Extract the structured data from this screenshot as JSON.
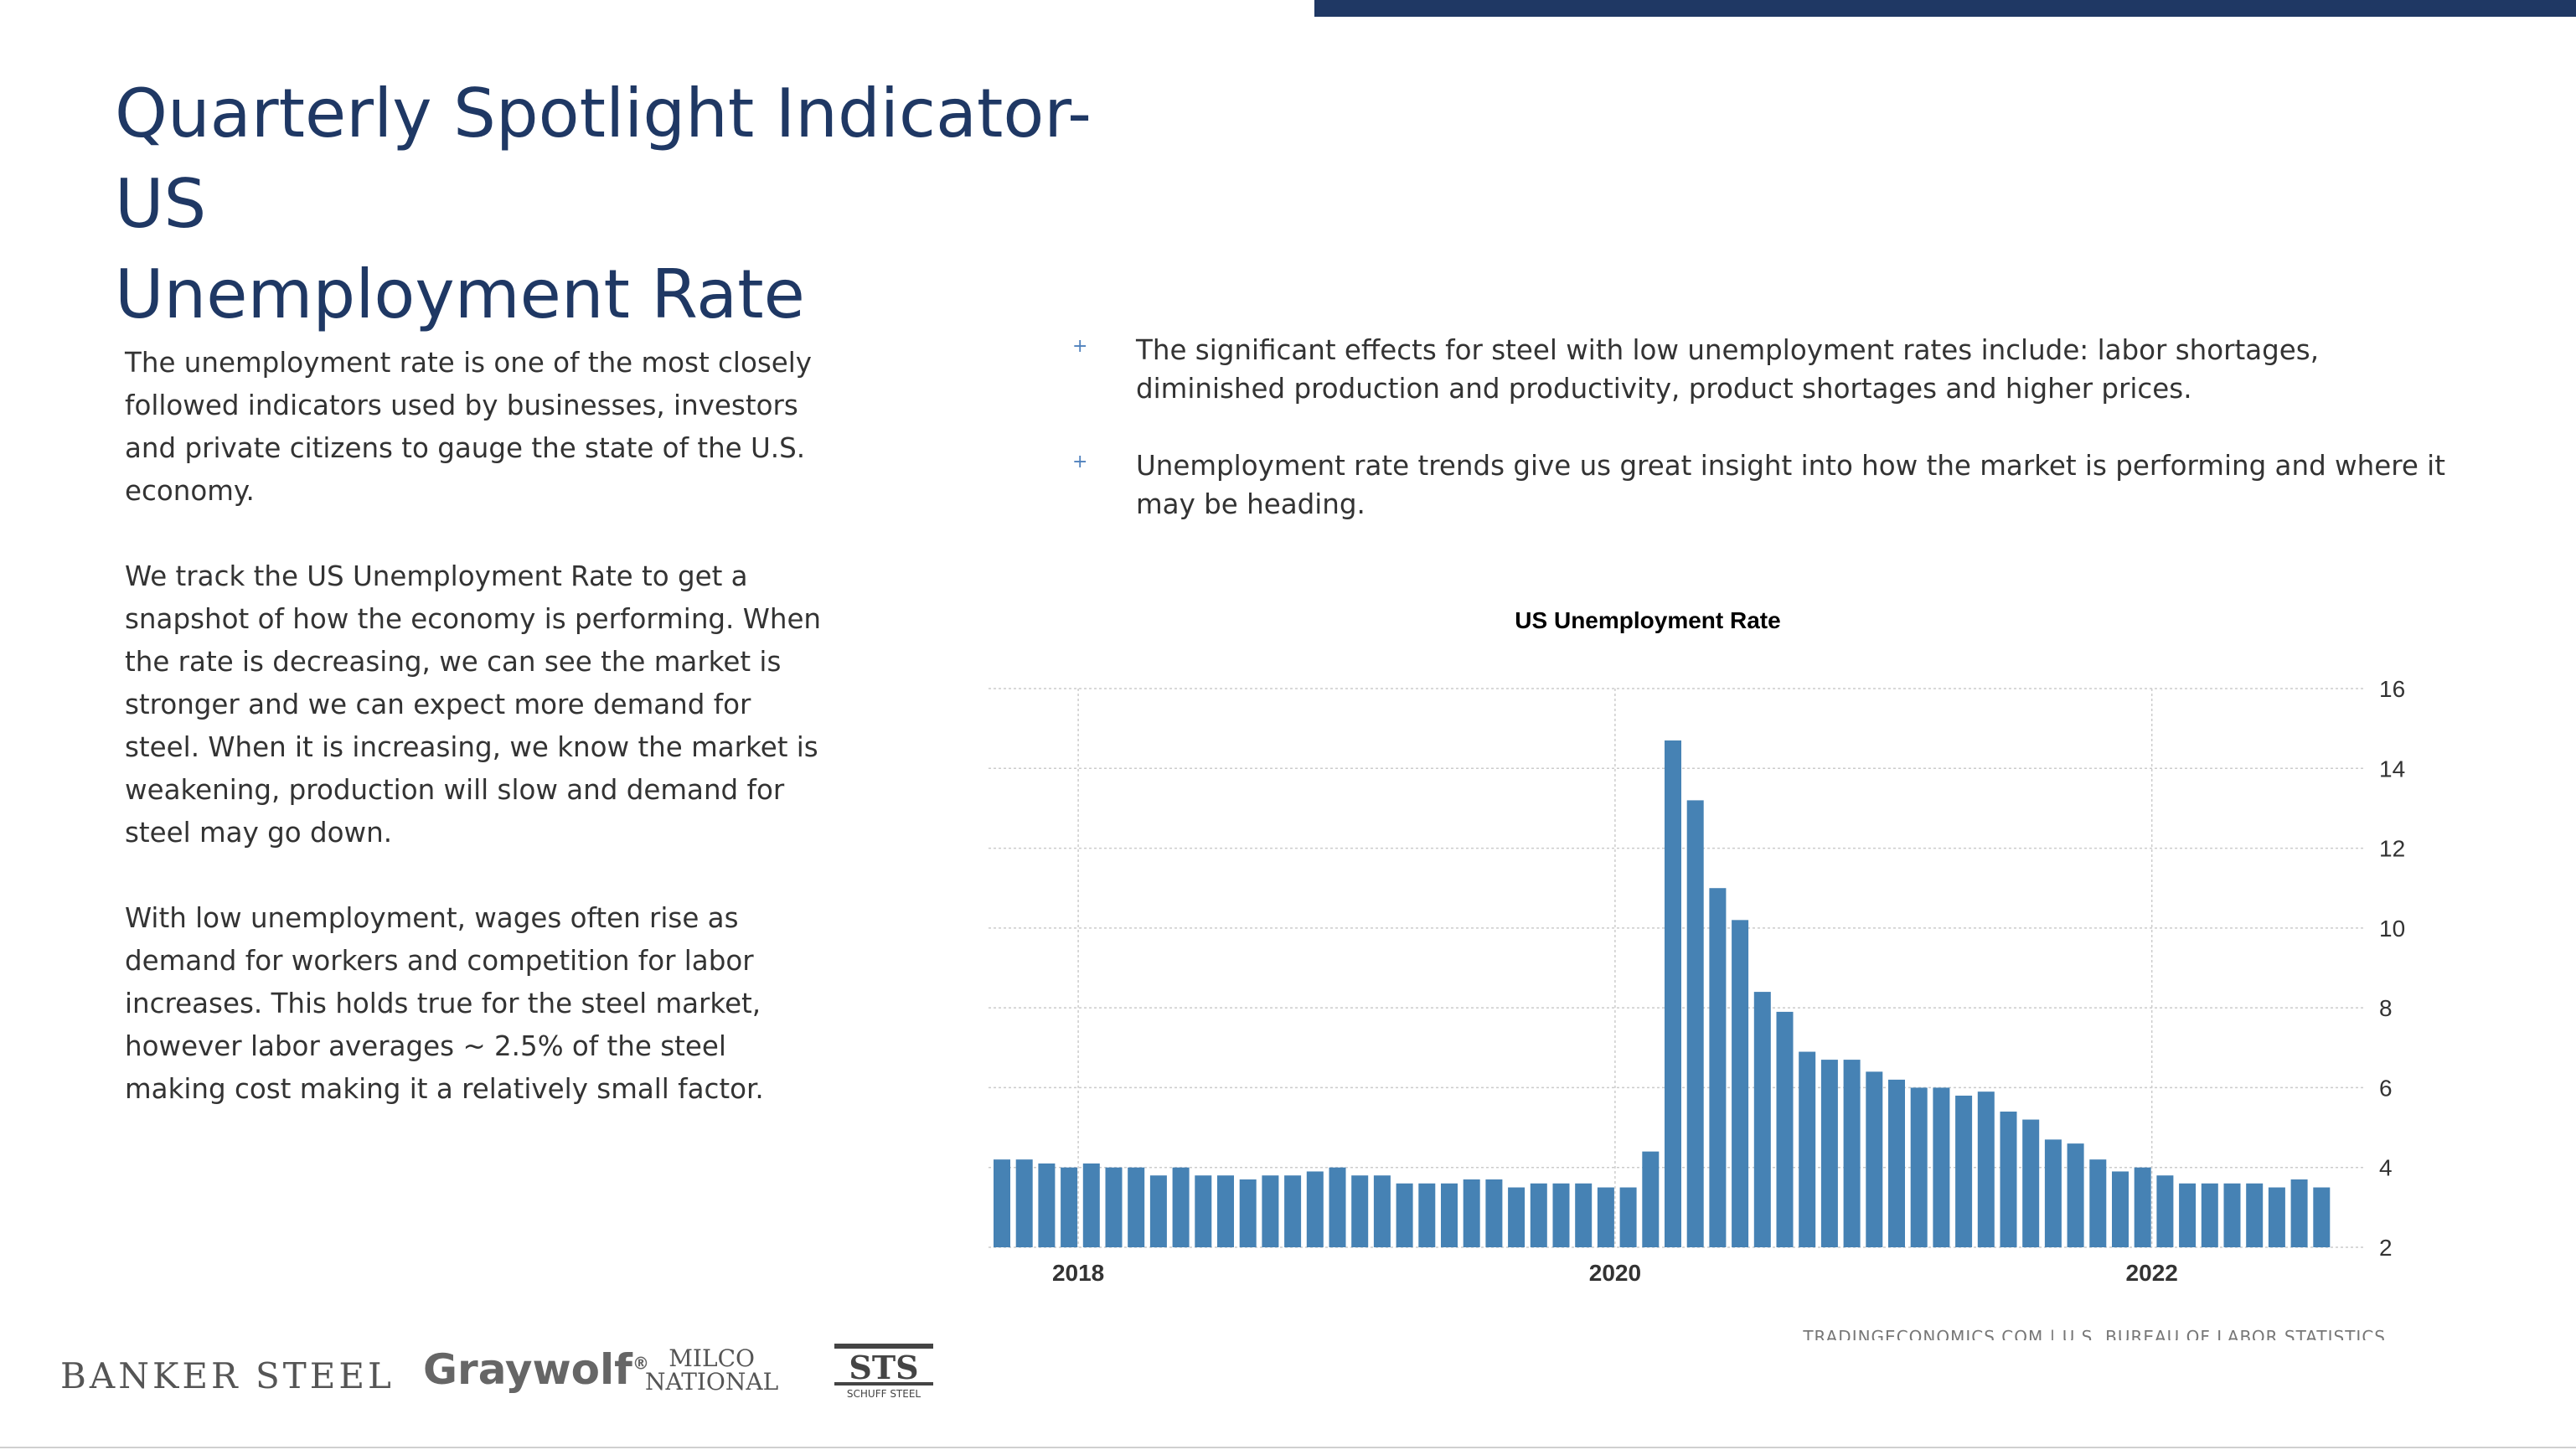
{
  "slide": {
    "title_line1": "Quarterly Spotlight Indicator- US",
    "title_line2": "Unemployment Rate",
    "left_paragraphs": [
      "The unemployment rate is one of the most closely followed indicators used by businesses, investors and private citizens to gauge the state of the U.S. economy.",
      "We track the US Unemployment Rate to get a snapshot of how the economy is performing. When the rate is decreasing, we can see the market is stronger and we can expect more demand for steel. When it is increasing, we know the market is weakening, production will slow and demand for steel may go down.",
      "With low unemployment, wages often rise as demand for workers and competition for labor increases. This holds true for the steel market, however labor averages ~ 2.5% of the steel making cost making it a relatively small factor."
    ],
    "bullets": [
      "The significant effects for steel with low unemployment rates include: labor shortages, diminished production and productivity, product shortages and higher prices.",
      "Unemployment rate trends give us great insight into how the market is performing and where it may be heading."
    ],
    "bullet_marker": "+",
    "logos": {
      "banker": "BANKER STEEL",
      "graywolf": "Graywolf",
      "graywolf_mark": "®",
      "milco_line1": "MILCO",
      "milco_line2": "NATIONAL",
      "sts_text": "SCHUFF STEEL",
      "sts_mark": "STS"
    }
  },
  "colors": {
    "title": "#1f3864",
    "bar": "#4682b4",
    "accent_bar": "#1f3864"
  },
  "chart_data": {
    "type": "bar",
    "title": "US Unemployment Rate",
    "source": "TRADINGECONOMICS.COM  |  U.S. BUREAU OF LABOR STATISTICS",
    "y_axis_side": "right",
    "ylim": [
      2,
      16
    ],
    "yticks": [
      "2",
      "4",
      "6",
      "8",
      "10",
      "12",
      "14",
      "16"
    ],
    "x_ticks": [
      {
        "label": "2018",
        "index": 3
      },
      {
        "label": "2020",
        "index": 27
      },
      {
        "label": "2022",
        "index": 51
      }
    ],
    "grid": true,
    "values": [
      4.2,
      4.2,
      4.1,
      4.0,
      4.1,
      4.0,
      4.0,
      3.8,
      4.0,
      3.8,
      3.8,
      3.7,
      3.8,
      3.8,
      3.9,
      4.0,
      3.8,
      3.8,
      3.6,
      3.6,
      3.6,
      3.7,
      3.7,
      3.5,
      3.6,
      3.6,
      3.6,
      3.5,
      3.5,
      4.4,
      14.7,
      13.2,
      11.0,
      10.2,
      8.4,
      7.9,
      6.9,
      6.7,
      6.7,
      6.4,
      6.2,
      6.0,
      6.0,
      5.8,
      5.9,
      5.4,
      5.2,
      4.7,
      4.6,
      4.2,
      3.9,
      4.0,
      3.8,
      3.6,
      3.6,
      3.6,
      3.6,
      3.5,
      3.7,
      3.5
    ]
  }
}
